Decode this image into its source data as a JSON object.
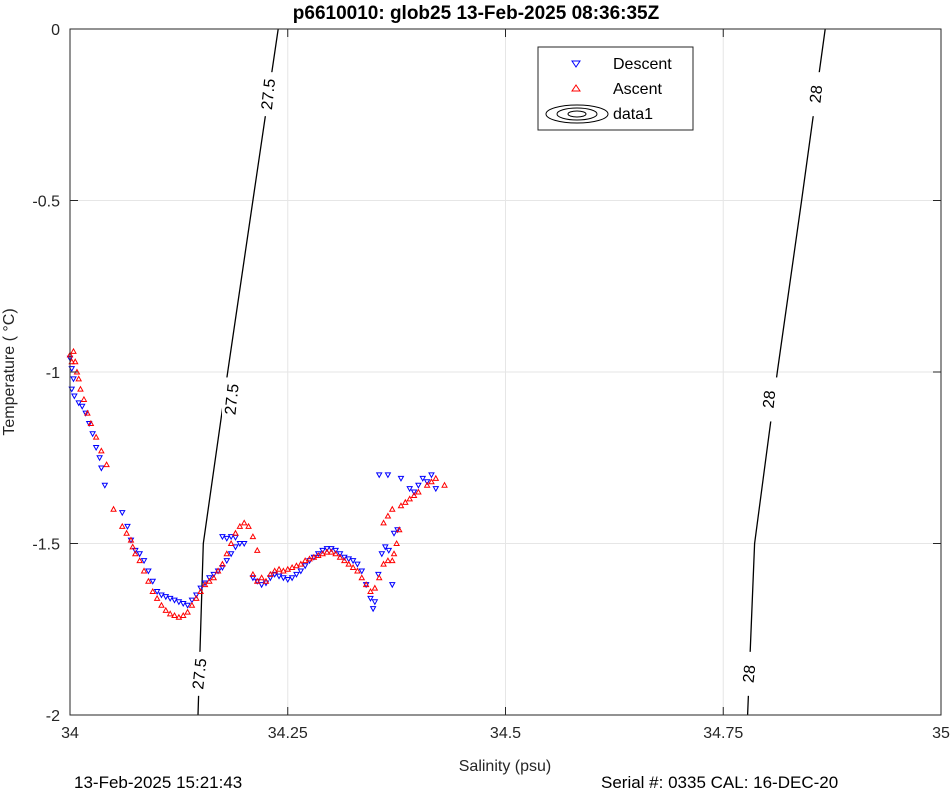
{
  "chart_data": {
    "type": "scatter",
    "title": "p6610010: glob25 13-Feb-2025 08:36:35Z",
    "xlabel": "Salinity (psu)",
    "ylabel": "Temperature (   °C)",
    "xlim": [
      34,
      35
    ],
    "ylim": [
      -2,
      0
    ],
    "x_ticks": [
      "34",
      "34.25",
      "34.5",
      "34.75",
      "35"
    ],
    "y_ticks": [
      "0",
      "-0.5",
      "-1",
      "-1.5",
      "-2"
    ],
    "grid": true,
    "legend_position": "top-center",
    "legend": [
      "Descent",
      "Ascent",
      "data1"
    ],
    "contours": [
      {
        "level": "27.5",
        "label": "27.5",
        "points": [
          [
            34.239,
            0
          ],
          [
            34.21,
            -0.5
          ],
          [
            34.181,
            -1.0
          ],
          [
            34.153,
            -1.5
          ],
          [
            34.147,
            -2.0
          ]
        ],
        "label_positions": [
          [
            34.228,
            -0.19
          ],
          [
            34.186,
            -1.08
          ],
          [
            34.149,
            -1.88
          ]
        ]
      },
      {
        "level": "28",
        "label": "28",
        "points": [
          [
            34.867,
            0
          ],
          [
            34.84,
            -0.5
          ],
          [
            34.812,
            -1.0
          ],
          [
            34.786,
            -1.5
          ],
          [
            34.778,
            -2.0
          ]
        ],
        "label_positions": [
          [
            34.857,
            -0.19
          ],
          [
            34.803,
            -1.08
          ],
          [
            34.78,
            -1.88
          ]
        ]
      }
    ],
    "series": [
      {
        "name": "Descent",
        "color": "#0000ff",
        "marker": "triangle-down",
        "points": [
          [
            34.0,
            -0.96
          ],
          [
            34.002,
            -0.99
          ],
          [
            34.004,
            -1.02
          ],
          [
            34.002,
            -1.05
          ],
          [
            34.005,
            -1.07
          ],
          [
            34.01,
            -1.09
          ],
          [
            34.014,
            -1.1
          ],
          [
            34.018,
            -1.12
          ],
          [
            34.022,
            -1.15
          ],
          [
            34.026,
            -1.18
          ],
          [
            34.03,
            -1.22
          ],
          [
            34.034,
            -1.25
          ],
          [
            34.036,
            -1.28
          ],
          [
            34.04,
            -1.33
          ],
          [
            34.06,
            -1.41
          ],
          [
            34.066,
            -1.45
          ],
          [
            34.07,
            -1.49
          ],
          [
            34.075,
            -1.52
          ],
          [
            34.08,
            -1.53
          ],
          [
            34.085,
            -1.55
          ],
          [
            34.09,
            -1.58
          ],
          [
            34.095,
            -1.61
          ],
          [
            34.1,
            -1.64
          ],
          [
            34.105,
            -1.65
          ],
          [
            34.11,
            -1.655
          ],
          [
            34.115,
            -1.66
          ],
          [
            34.12,
            -1.665
          ],
          [
            34.125,
            -1.67
          ],
          [
            34.13,
            -1.675
          ],
          [
            34.135,
            -1.68
          ],
          [
            34.14,
            -1.665
          ],
          [
            34.145,
            -1.65
          ],
          [
            34.15,
            -1.63
          ],
          [
            34.155,
            -1.615
          ],
          [
            34.16,
            -1.6
          ],
          [
            34.165,
            -1.59
          ],
          [
            34.17,
            -1.58
          ],
          [
            34.175,
            -1.57
          ],
          [
            34.18,
            -1.55
          ],
          [
            34.185,
            -1.53
          ],
          [
            34.19,
            -1.51
          ],
          [
            34.195,
            -1.5
          ],
          [
            34.175,
            -1.48
          ],
          [
            34.18,
            -1.485
          ],
          [
            34.185,
            -1.48
          ],
          [
            34.19,
            -1.482
          ],
          [
            34.2,
            -1.5
          ],
          [
            34.21,
            -1.6
          ],
          [
            34.215,
            -1.61
          ],
          [
            34.22,
            -1.62
          ],
          [
            34.225,
            -1.615
          ],
          [
            34.23,
            -1.6
          ],
          [
            34.235,
            -1.59
          ],
          [
            34.24,
            -1.595
          ],
          [
            34.245,
            -1.6
          ],
          [
            34.25,
            -1.605
          ],
          [
            34.255,
            -1.6
          ],
          [
            34.26,
            -1.59
          ],
          [
            34.265,
            -1.58
          ],
          [
            34.27,
            -1.565
          ],
          [
            34.275,
            -1.55
          ],
          [
            34.28,
            -1.54
          ],
          [
            34.285,
            -1.53
          ],
          [
            34.29,
            -1.52
          ],
          [
            34.295,
            -1.515
          ],
          [
            34.3,
            -1.515
          ],
          [
            34.305,
            -1.52
          ],
          [
            34.31,
            -1.53
          ],
          [
            34.315,
            -1.54
          ],
          [
            34.32,
            -1.545
          ],
          [
            34.325,
            -1.55
          ],
          [
            34.33,
            -1.56
          ],
          [
            34.335,
            -1.58
          ],
          [
            34.34,
            -1.62
          ],
          [
            34.345,
            -1.66
          ],
          [
            34.348,
            -1.69
          ],
          [
            34.35,
            -1.67
          ],
          [
            34.354,
            -1.59
          ],
          [
            34.358,
            -1.53
          ],
          [
            34.362,
            -1.51
          ],
          [
            34.366,
            -1.52
          ],
          [
            34.372,
            -1.47
          ],
          [
            34.376,
            -1.46
          ],
          [
            34.37,
            -1.62
          ],
          [
            34.355,
            -1.3
          ],
          [
            34.365,
            -1.3
          ],
          [
            34.38,
            -1.31
          ],
          [
            34.39,
            -1.34
          ],
          [
            34.395,
            -1.35
          ],
          [
            34.4,
            -1.33
          ],
          [
            34.405,
            -1.31
          ],
          [
            34.41,
            -1.32
          ],
          [
            34.415,
            -1.3
          ],
          [
            34.42,
            -1.34
          ]
        ]
      },
      {
        "name": "Ascent",
        "color": "#ff0000",
        "marker": "triangle-up",
        "points": [
          [
            34.0,
            -0.95
          ],
          [
            34.002,
            -0.97
          ],
          [
            34.004,
            -0.94
          ],
          [
            34.006,
            -0.97
          ],
          [
            34.008,
            -1.0
          ],
          [
            34.01,
            -1.02
          ],
          [
            34.012,
            -1.05
          ],
          [
            34.016,
            -1.08
          ],
          [
            34.02,
            -1.12
          ],
          [
            34.024,
            -1.15
          ],
          [
            34.03,
            -1.19
          ],
          [
            34.036,
            -1.23
          ],
          [
            34.042,
            -1.27
          ],
          [
            34.05,
            -1.4
          ],
          [
            34.06,
            -1.45
          ],
          [
            34.065,
            -1.47
          ],
          [
            34.07,
            -1.49
          ],
          [
            34.072,
            -1.51
          ],
          [
            34.075,
            -1.53
          ],
          [
            34.08,
            -1.55
          ],
          [
            34.085,
            -1.58
          ],
          [
            34.09,
            -1.61
          ],
          [
            34.095,
            -1.64
          ],
          [
            34.1,
            -1.66
          ],
          [
            34.105,
            -1.68
          ],
          [
            34.11,
            -1.695
          ],
          [
            34.115,
            -1.705
          ],
          [
            34.12,
            -1.71
          ],
          [
            34.125,
            -1.715
          ],
          [
            34.13,
            -1.71
          ],
          [
            34.135,
            -1.7
          ],
          [
            34.14,
            -1.68
          ],
          [
            34.145,
            -1.66
          ],
          [
            34.15,
            -1.64
          ],
          [
            34.155,
            -1.62
          ],
          [
            34.16,
            -1.61
          ],
          [
            34.165,
            -1.6
          ],
          [
            34.17,
            -1.58
          ],
          [
            34.175,
            -1.56
          ],
          [
            34.18,
            -1.53
          ],
          [
            34.185,
            -1.5
          ],
          [
            34.19,
            -1.47
          ],
          [
            34.195,
            -1.45
          ],
          [
            34.2,
            -1.44
          ],
          [
            34.205,
            -1.45
          ],
          [
            34.21,
            -1.48
          ],
          [
            34.215,
            -1.52
          ],
          [
            34.21,
            -1.59
          ],
          [
            34.215,
            -1.61
          ],
          [
            34.22,
            -1.6
          ],
          [
            34.225,
            -1.61
          ],
          [
            34.23,
            -1.59
          ],
          [
            34.235,
            -1.58
          ],
          [
            34.24,
            -1.575
          ],
          [
            34.245,
            -1.58
          ],
          [
            34.25,
            -1.575
          ],
          [
            34.255,
            -1.57
          ],
          [
            34.26,
            -1.565
          ],
          [
            34.265,
            -1.56
          ],
          [
            34.27,
            -1.55
          ],
          [
            34.275,
            -1.545
          ],
          [
            34.28,
            -1.54
          ],
          [
            34.285,
            -1.535
          ],
          [
            34.29,
            -1.53
          ],
          [
            34.295,
            -1.525
          ],
          [
            34.3,
            -1.525
          ],
          [
            34.305,
            -1.53
          ],
          [
            34.31,
            -1.54
          ],
          [
            34.315,
            -1.55
          ],
          [
            34.32,
            -1.56
          ],
          [
            34.325,
            -1.57
          ],
          [
            34.33,
            -1.58
          ],
          [
            34.335,
            -1.6
          ],
          [
            34.34,
            -1.62
          ],
          [
            34.345,
            -1.64
          ],
          [
            34.35,
            -1.63
          ],
          [
            34.355,
            -1.6
          ],
          [
            34.36,
            -1.56
          ],
          [
            34.365,
            -1.55
          ],
          [
            34.37,
            -1.55
          ],
          [
            34.372,
            -1.53
          ],
          [
            34.375,
            -1.5
          ],
          [
            34.378,
            -1.46
          ],
          [
            34.36,
            -1.44
          ],
          [
            34.365,
            -1.42
          ],
          [
            34.37,
            -1.4
          ],
          [
            34.38,
            -1.39
          ],
          [
            34.385,
            -1.38
          ],
          [
            34.39,
            -1.37
          ],
          [
            34.395,
            -1.36
          ],
          [
            34.4,
            -1.35
          ],
          [
            34.41,
            -1.33
          ],
          [
            34.415,
            -1.32
          ],
          [
            34.42,
            -1.31
          ],
          [
            34.43,
            -1.33
          ]
        ]
      }
    ]
  },
  "footer": {
    "left": "13-Feb-2025 15:21:43",
    "right": "Serial #: 0335  CAL: 16-DEC-20"
  }
}
